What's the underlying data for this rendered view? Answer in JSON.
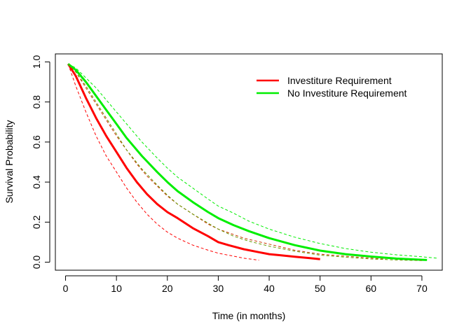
{
  "chart_data": {
    "type": "line",
    "title": "",
    "xlabel": "Time (in months)",
    "ylabel": "Survival Probability",
    "xlim": [
      -2,
      74
    ],
    "ylim": [
      -0.04,
      1.04
    ],
    "xticks": [
      0,
      10,
      20,
      30,
      40,
      50,
      60,
      70
    ],
    "xtick_labels": [
      "0",
      "10",
      "20",
      "30",
      "40",
      "50",
      "60",
      "70"
    ],
    "yticks": [
      0.0,
      0.2,
      0.4,
      0.6,
      0.8,
      1.0
    ],
    "ytick_labels": [
      "0.0",
      "0.2",
      "0.4",
      "0.6",
      "0.8",
      "1.0"
    ],
    "grid": false,
    "legend_position": "top-right",
    "series": [
      {
        "name": "Investiture Requirement",
        "color": "#ff0000",
        "style": "solid",
        "x": [
          0.5,
          2,
          4,
          6,
          8,
          10,
          12,
          14,
          16,
          18,
          20,
          22,
          25,
          28,
          30,
          32,
          35,
          38,
          40,
          42,
          45,
          48,
          50
        ],
        "y": [
          0.99,
          0.93,
          0.82,
          0.72,
          0.63,
          0.55,
          0.47,
          0.4,
          0.34,
          0.29,
          0.25,
          0.22,
          0.17,
          0.13,
          0.1,
          0.085,
          0.065,
          0.05,
          0.04,
          0.035,
          0.027,
          0.02,
          0.015
        ]
      },
      {
        "name": "Investiture Requirement (lower)",
        "color": "#ff0000",
        "style": "dashed",
        "x": [
          0.5,
          2,
          4,
          6,
          8,
          10,
          12,
          14,
          16,
          18,
          20,
          22,
          25,
          28,
          30,
          32,
          35,
          38
        ],
        "y": [
          0.99,
          0.88,
          0.75,
          0.63,
          0.53,
          0.45,
          0.37,
          0.3,
          0.24,
          0.19,
          0.15,
          0.12,
          0.085,
          0.06,
          0.045,
          0.035,
          0.02,
          0.01
        ]
      },
      {
        "name": "Investiture Requirement (upper)",
        "color": "#cc3300",
        "style": "dashed",
        "x": [
          0.5,
          2,
          4,
          6,
          8,
          10,
          12,
          14,
          16,
          18,
          20,
          22,
          25,
          28,
          30,
          35,
          40,
          45,
          50,
          55,
          60,
          63
        ],
        "y": [
          0.99,
          0.95,
          0.87,
          0.79,
          0.71,
          0.63,
          0.56,
          0.49,
          0.43,
          0.38,
          0.33,
          0.29,
          0.24,
          0.19,
          0.165,
          0.12,
          0.09,
          0.06,
          0.04,
          0.03,
          0.02,
          0.015
        ]
      },
      {
        "name": "No Investiture Requirement",
        "color": "#00ee00",
        "style": "solid",
        "x": [
          0.5,
          2,
          4,
          6,
          8,
          10,
          12,
          15,
          18,
          20,
          22,
          25,
          28,
          30,
          33,
          36,
          40,
          45,
          50,
          55,
          60,
          65,
          70,
          71
        ],
        "y": [
          0.99,
          0.96,
          0.9,
          0.83,
          0.76,
          0.69,
          0.62,
          0.53,
          0.45,
          0.4,
          0.355,
          0.3,
          0.25,
          0.22,
          0.185,
          0.155,
          0.12,
          0.085,
          0.058,
          0.04,
          0.028,
          0.018,
          0.012,
          0.011
        ]
      },
      {
        "name": "No Investiture Requirement (upper)",
        "color": "#00ee00",
        "style": "dashed",
        "x": [
          0.5,
          2,
          4,
          6,
          8,
          10,
          12,
          15,
          18,
          20,
          22,
          25,
          28,
          30,
          33,
          36,
          40,
          45,
          50,
          55,
          60,
          65,
          70,
          73
        ],
        "y": [
          0.99,
          0.97,
          0.92,
          0.87,
          0.81,
          0.75,
          0.69,
          0.6,
          0.52,
          0.47,
          0.425,
          0.37,
          0.315,
          0.28,
          0.245,
          0.205,
          0.165,
          0.125,
          0.093,
          0.068,
          0.05,
          0.037,
          0.027,
          0.02
        ]
      },
      {
        "name": "No Investiture Requirement (lower)",
        "color": "#669900",
        "style": "dashed",
        "x": [
          0.5,
          2,
          4,
          6,
          8,
          10,
          12,
          15,
          18,
          20,
          22,
          25,
          28,
          30,
          33,
          36,
          40,
          45,
          50,
          55,
          60,
          65,
          70
        ],
        "y": [
          0.99,
          0.95,
          0.88,
          0.8,
          0.72,
          0.64,
          0.56,
          0.465,
          0.385,
          0.335,
          0.29,
          0.24,
          0.195,
          0.165,
          0.13,
          0.105,
          0.08,
          0.055,
          0.035,
          0.025,
          0.016,
          0.011,
          0.008
        ]
      }
    ],
    "legend": [
      {
        "label": "Investiture Requirement",
        "color": "#ff0000"
      },
      {
        "label": "No Investiture Requirement",
        "color": "#00ee00"
      }
    ]
  }
}
